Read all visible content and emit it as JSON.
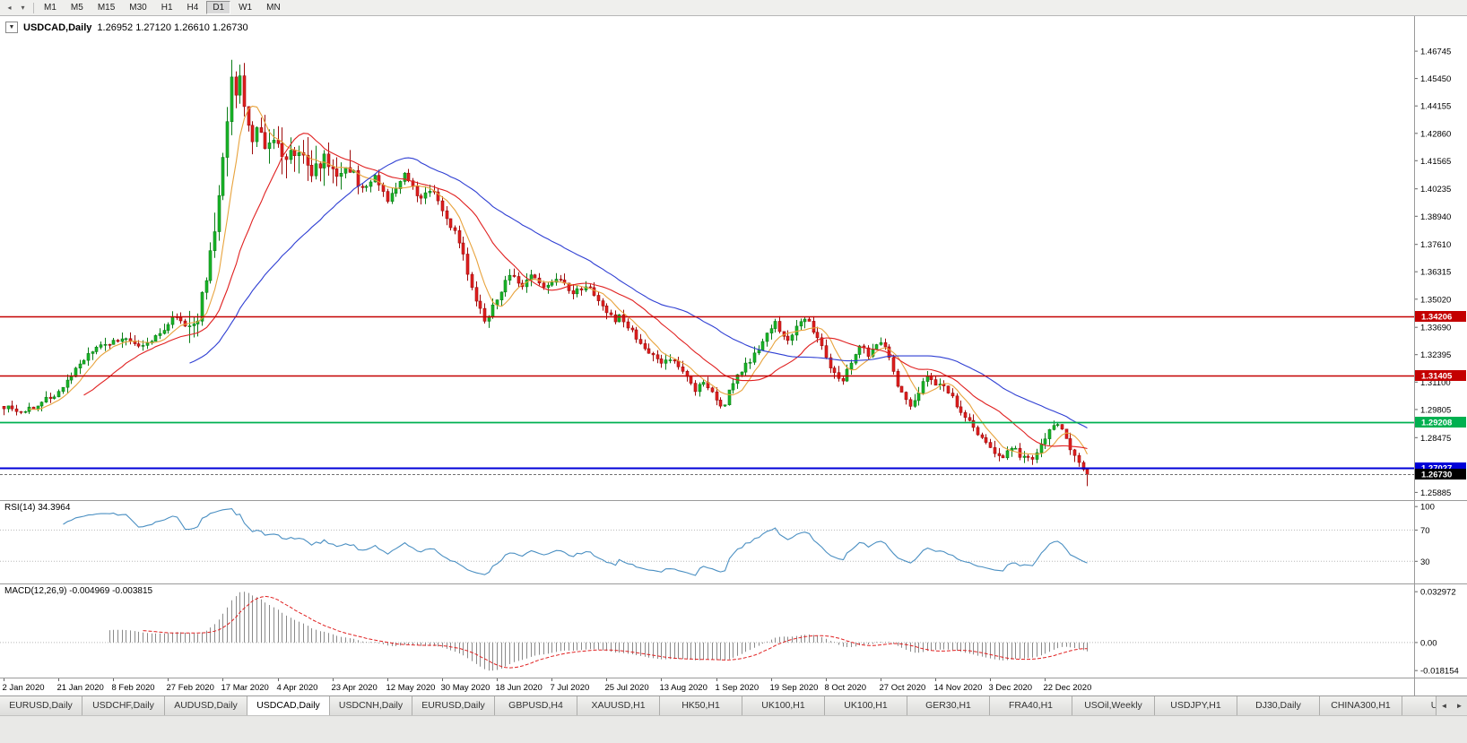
{
  "toolbar": {
    "collapse_icon": "◂",
    "dropdown_icon": "▾",
    "timeframes": [
      "M1",
      "M5",
      "M15",
      "M30",
      "H1",
      "H4",
      "D1",
      "W1",
      "MN"
    ],
    "active_timeframe": "D1"
  },
  "chart_header": {
    "dropdown_icon": "▼",
    "symbol_title": "USDCAD,Daily",
    "ohlc": "1.26952 1.27120 1.26610 1.26730",
    "open": 1.26952,
    "high": 1.2712,
    "low": 1.2661,
    "close": 1.2673
  },
  "rsi_panel": {
    "header": "RSI(14) 34.3964",
    "period": 14,
    "current": 34.3964,
    "levels": [
      70,
      30
    ],
    "axis": [
      {
        "label": "100",
        "value": 100
      },
      {
        "label": "70",
        "value": 70
      },
      {
        "label": "30",
        "value": 30
      }
    ]
  },
  "macd_panel": {
    "header": "MACD(12,26,9) -0.004969 -0.003815",
    "fast": 12,
    "slow": 26,
    "signal": 9,
    "macd_value": -0.004969,
    "signal_value": -0.003815,
    "range": [
      -0.0227,
      0.0383
    ],
    "axis": [
      {
        "label": "0.032972",
        "value": 0.032972
      },
      {
        "label": "0.00",
        "value": 0
      },
      {
        "label": "-0.018154",
        "value": -0.018154
      }
    ]
  },
  "chart_data": {
    "type": "candlestick",
    "symbol": "USDCAD",
    "timeframe": "Daily",
    "candle_count": 258,
    "date_step_candles": 13,
    "y_range": [
      1.2552,
      1.484
    ],
    "y_axis_labels": [
      "1.46745",
      "1.45450",
      "1.44155",
      "1.42860",
      "1.41565",
      "1.40235",
      "1.38940",
      "1.37610",
      "1.36315",
      "1.35020",
      "1.33690",
      "1.32395",
      "1.31100",
      "1.29805",
      "1.28475",
      "1.27180",
      "1.25885"
    ],
    "x_axis_dates": [
      "2 Jan 2020",
      "21 Jan 2020",
      "8 Feb 2020",
      "27 Feb 2020",
      "17 Mar 2020",
      "4 Apr 2020",
      "23 Apr 2020",
      "12 May 2020",
      "30 May 2020",
      "18 Jun 2020",
      "7 Jul 2020",
      "25 Jul 2020",
      "13 Aug 2020",
      "1 Sep 2020",
      "19 Sep 2020",
      "8 Oct 2020",
      "27 Oct 2020",
      "14 Nov 2020",
      "3 Dec 2020",
      "22 Dec 2020"
    ],
    "price_path": [
      [
        0.0,
        1.2995
      ],
      [
        0.016,
        1.2965
      ],
      [
        0.033,
        1.301
      ],
      [
        0.052,
        1.3065
      ],
      [
        0.07,
        1.32
      ],
      [
        0.086,
        1.327
      ],
      [
        0.1,
        1.33
      ],
      [
        0.111,
        1.332
      ],
      [
        0.123,
        1.327
      ],
      [
        0.136,
        1.33
      ],
      [
        0.148,
        1.336
      ],
      [
        0.156,
        1.343
      ],
      [
        0.165,
        1.338
      ],
      [
        0.173,
        1.333
      ],
      [
        0.179,
        1.342
      ],
      [
        0.188,
        1.364
      ],
      [
        0.196,
        1.386
      ],
      [
        0.202,
        1.412
      ],
      [
        0.207,
        1.442
      ],
      [
        0.211,
        1.46
      ],
      [
        0.214,
        1.448
      ],
      [
        0.218,
        1.456
      ],
      [
        0.222,
        1.438
      ],
      [
        0.229,
        1.422
      ],
      [
        0.235,
        1.434
      ],
      [
        0.243,
        1.418
      ],
      [
        0.251,
        1.428
      ],
      [
        0.259,
        1.416
      ],
      [
        0.272,
        1.422
      ],
      [
        0.284,
        1.41
      ],
      [
        0.296,
        1.418
      ],
      [
        0.309,
        1.406
      ],
      [
        0.321,
        1.414
      ],
      [
        0.329,
        1.401
      ],
      [
        0.342,
        1.409
      ],
      [
        0.354,
        1.396
      ],
      [
        0.366,
        1.406
      ],
      [
        0.37,
        1.41
      ],
      [
        0.383,
        1.398
      ],
      [
        0.395,
        1.403
      ],
      [
        0.407,
        1.39
      ],
      [
        0.42,
        1.378
      ],
      [
        0.428,
        1.363
      ],
      [
        0.436,
        1.35
      ],
      [
        0.444,
        1.339
      ],
      [
        0.453,
        1.348
      ],
      [
        0.461,
        1.356
      ],
      [
        0.469,
        1.364
      ],
      [
        0.477,
        1.356
      ],
      [
        0.486,
        1.362
      ],
      [
        0.498,
        1.355
      ],
      [
        0.51,
        1.361
      ],
      [
        0.514,
        1.358
      ],
      [
        0.527,
        1.353
      ],
      [
        0.539,
        1.358
      ],
      [
        0.551,
        1.348
      ],
      [
        0.564,
        1.34
      ],
      [
        0.568,
        1.342
      ],
      [
        0.58,
        1.335
      ],
      [
        0.593,
        1.326
      ],
      [
        0.605,
        1.32
      ],
      [
        0.617,
        1.322
      ],
      [
        0.63,
        1.315
      ],
      [
        0.638,
        1.306
      ],
      [
        0.646,
        1.312
      ],
      [
        0.654,
        1.305
      ],
      [
        0.663,
        1.298
      ],
      [
        0.668,
        1.305
      ],
      [
        0.679,
        1.315
      ],
      [
        0.691,
        1.323
      ],
      [
        0.704,
        1.333
      ],
      [
        0.712,
        1.339
      ],
      [
        0.716,
        1.335
      ],
      [
        0.724,
        1.33
      ],
      [
        0.732,
        1.338
      ],
      [
        0.741,
        1.342
      ],
      [
        0.749,
        1.333
      ],
      [
        0.757,
        1.325
      ],
      [
        0.765,
        1.315
      ],
      [
        0.774,
        1.312
      ],
      [
        0.782,
        1.321
      ],
      [
        0.79,
        1.328
      ],
      [
        0.798,
        1.324
      ],
      [
        0.807,
        1.331
      ],
      [
        0.815,
        1.326
      ],
      [
        0.823,
        1.312
      ],
      [
        0.831,
        1.304
      ],
      [
        0.835,
        1.298
      ],
      [
        0.844,
        1.306
      ],
      [
        0.852,
        1.314
      ],
      [
        0.86,
        1.309
      ],
      [
        0.864,
        1.31
      ],
      [
        0.872,
        1.306
      ],
      [
        0.881,
        1.299
      ],
      [
        0.889,
        1.293
      ],
      [
        0.897,
        1.288
      ],
      [
        0.905,
        1.283
      ],
      [
        0.914,
        1.278
      ],
      [
        0.922,
        1.275
      ],
      [
        0.93,
        1.281
      ],
      [
        0.938,
        1.276
      ],
      [
        0.947,
        1.274
      ],
      [
        0.955,
        1.28
      ],
      [
        0.963,
        1.287
      ],
      [
        0.971,
        1.291
      ],
      [
        0.979,
        1.286
      ],
      [
        0.988,
        1.276
      ],
      [
        0.994,
        1.27
      ],
      [
        1.0,
        1.2673
      ]
    ],
    "prev_close": 1.2697,
    "last_low": 1.2618,
    "hlines": [
      {
        "price": 1.34206,
        "label": "1.34206",
        "color": "#c40000",
        "width": 1.6
      },
      {
        "price": 1.31405,
        "label": "1.31405",
        "color": "#c40000",
        "width": 1.6
      },
      {
        "price": 1.29208,
        "label": "1.29208",
        "color": "#00b050",
        "width": 1.8
      },
      {
        "price": 1.27027,
        "label": "1.27027",
        "color": "#0000d8",
        "width": 2
      }
    ],
    "current_price": {
      "value": 1.2673,
      "label": "1.26730",
      "color": "#000000"
    },
    "mas": [
      {
        "period": 7,
        "color": "#e8a33d"
      },
      {
        "period": 20,
        "color": "#e02020"
      },
      {
        "period": 45,
        "color": "#2f3fd3"
      }
    ],
    "colors": {
      "bull_fill": "#18b527",
      "bull_stroke": "#0a7d16",
      "bear_fill": "#e01f1f",
      "bear_stroke": "#9e0b0b",
      "rsi_line": "#4a8fc2",
      "macd_hist": "#8a8a8a",
      "macd_signal": "#e02020",
      "separator": "#9a9a9a",
      "axis_text": "#000000"
    }
  },
  "tabs": {
    "items": [
      "EURUSD,Daily",
      "USDCHF,Daily",
      "AUDUSD,Daily",
      "USDCAD,Daily",
      "USDCNH,Daily",
      "EURUSD,Daily",
      "GBPUSD,H4",
      "XAUUSD,H1",
      "HK50,H1",
      "UK100,H1",
      "UK100,H1",
      "GER30,H1",
      "FRA40,H1",
      "USOil,Weekly",
      "USDJPY,H1",
      "DJ30,Daily",
      "CHINA300,H1",
      "USOil"
    ],
    "active_index": 3,
    "scroll_left_icon": "◄",
    "scroll_right_icon": "►"
  }
}
